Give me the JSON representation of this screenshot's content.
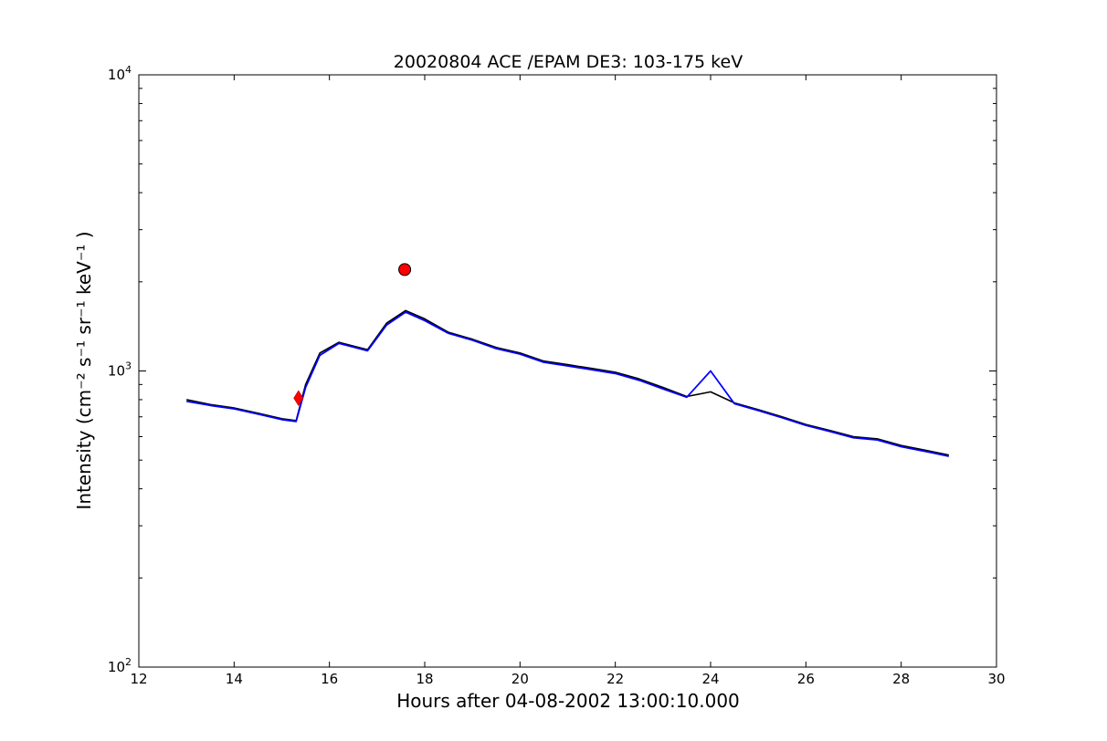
{
  "chart_data": {
    "type": "line",
    "title": "20020804 ACE /EPAM DE3: 103-175 keV",
    "xlabel": "Hours after 04-08-2002 13:00:10.000",
    "ylabel": "Intensity (cm⁻² s⁻¹ sr⁻¹ keV⁻¹ )",
    "xlim": [
      12,
      30
    ],
    "ylim": [
      100,
      10000
    ],
    "yscale": "log",
    "grid": false,
    "xticks": [
      12,
      14,
      16,
      18,
      20,
      22,
      24,
      26,
      28,
      30
    ],
    "yticks": [
      {
        "value": 100,
        "base": "10",
        "exp": "2"
      },
      {
        "value": 1000,
        "base": "10",
        "exp": "3"
      },
      {
        "value": 10000,
        "base": "10",
        "exp": "4"
      }
    ],
    "series": [
      {
        "style": "raw",
        "color": "#000000",
        "x": [
          13.0,
          13.5,
          14.0,
          14.5,
          15.0,
          15.3,
          15.5,
          15.8,
          16.2,
          16.8,
          17.2,
          17.6,
          18.0,
          18.5,
          19.0,
          19.5,
          20.0,
          20.5,
          21.0,
          21.5,
          22.0,
          22.5,
          23.0,
          23.5,
          24.0,
          24.5,
          25.0,
          25.5,
          26.0,
          26.5,
          27.0,
          27.5,
          28.0,
          28.5,
          29.0
        ],
        "y": [
          800,
          770,
          750,
          720,
          690,
          680,
          900,
          1150,
          1250,
          1180,
          1450,
          1600,
          1500,
          1350,
          1280,
          1200,
          1150,
          1080,
          1050,
          1020,
          990,
          940,
          880,
          820,
          850,
          780,
          740,
          700,
          660,
          630,
          600,
          590,
          560,
          540,
          520
        ]
      },
      {
        "style": "smoothed",
        "color": "#0000ff",
        "x": [
          13.0,
          13.5,
          14.0,
          14.5,
          15.0,
          15.3,
          15.5,
          15.8,
          16.2,
          16.8,
          17.2,
          17.6,
          18.0,
          18.5,
          19.0,
          19.5,
          20.0,
          20.5,
          21.0,
          21.5,
          22.0,
          22.5,
          23.0,
          23.5,
          24.0,
          24.5,
          25.0,
          25.5,
          26.0,
          26.5,
          27.0,
          27.5,
          28.0,
          28.5,
          29.0
        ],
        "y": [
          790,
          765,
          745,
          715,
          685,
          675,
          880,
          1130,
          1240,
          1170,
          1430,
          1580,
          1480,
          1340,
          1270,
          1190,
          1140,
          1070,
          1040,
          1010,
          980,
          930,
          870,
          815,
          1000,
          775,
          735,
          695,
          655,
          625,
          595,
          585,
          555,
          535,
          515
        ]
      }
    ],
    "markers": [
      {
        "shape": "diamond",
        "color": "#ff0000",
        "x": 15.35,
        "y": 810
      },
      {
        "shape": "circle",
        "color": "#ff0000",
        "x": 17.58,
        "y": 2200
      }
    ]
  }
}
